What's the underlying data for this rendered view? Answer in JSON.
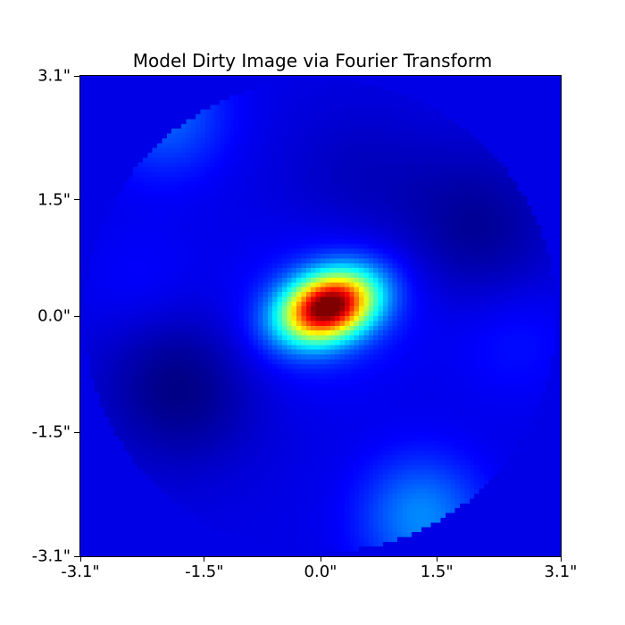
{
  "chart_data": {
    "type": "heatmap",
    "title": "Model Dirty Image via Fourier Transform",
    "xlabel": "",
    "ylabel": "",
    "xlim": [
      -3.1,
      3.1
    ],
    "ylim": [
      -3.1,
      3.1
    ],
    "x_ticks": [
      -3.1,
      -1.5,
      0.0,
      1.5,
      3.1
    ],
    "y_ticks": [
      -3.1,
      -1.5,
      0.0,
      1.5,
      3.1
    ],
    "x_tick_labels": [
      "-3.1\"",
      "-1.5\"",
      "0.0\"",
      "1.5\"",
      "3.1\""
    ],
    "y_tick_labels": [
      "-3.1\"",
      "-1.5\"",
      "0.0\"",
      "1.5\"",
      "3.1\""
    ],
    "colormap": "jet",
    "grid": false,
    "field_of_view_radius": 3.05,
    "peak": {
      "x": 0.1,
      "y": 0.12,
      "relative_intensity": 1.0
    },
    "sidelobes": [
      {
        "x": -2.0,
        "y": 2.6,
        "relative_intensity": 0.22
      },
      {
        "x": 1.3,
        "y": -2.6,
        "relative_intensity": 0.26
      },
      {
        "x": 2.5,
        "y": -0.3,
        "relative_intensity": 0.14
      },
      {
        "x": -2.3,
        "y": 0.4,
        "relative_intensity": 0.13
      }
    ],
    "troughs": [
      {
        "x": -1.8,
        "y": -0.9,
        "relative_intensity": 0.0
      },
      {
        "x": 2.0,
        "y": 1.1,
        "relative_intensity": 0.02
      },
      {
        "x": 0.5,
        "y": 1.7,
        "relative_intensity": 0.06
      }
    ],
    "background_relative_intensity": 0.1
  }
}
